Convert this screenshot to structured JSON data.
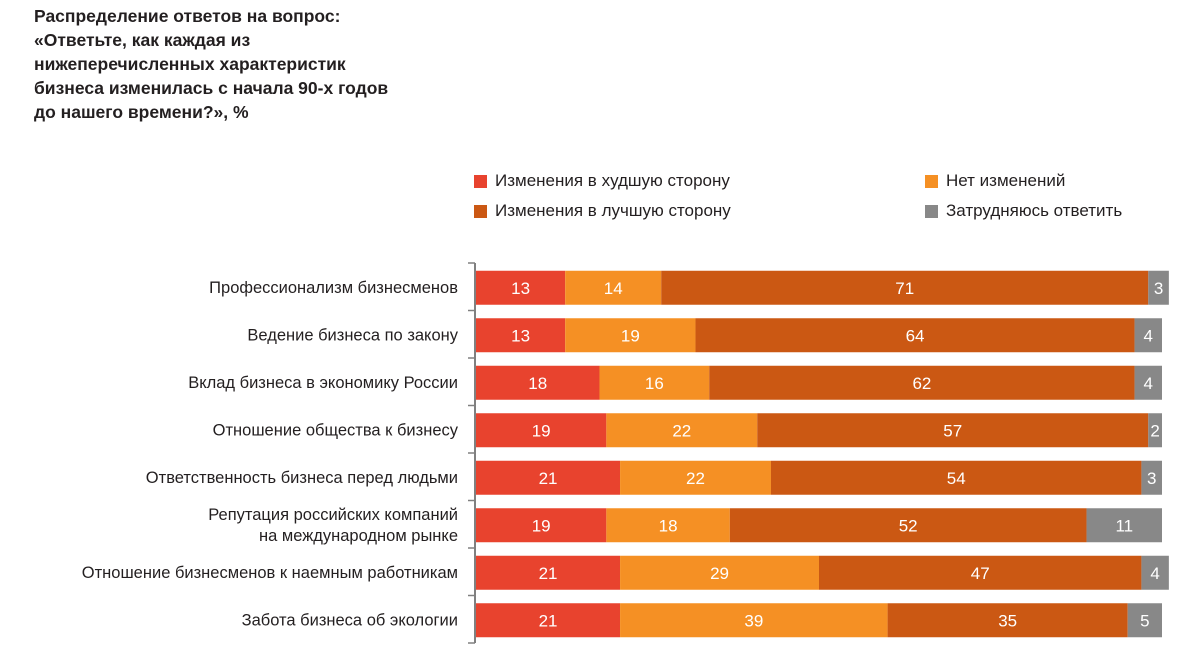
{
  "chart_data": {
    "type": "bar",
    "orientation": "horizontal",
    "stacked": true,
    "title": "Распределение ответов на вопрос:\n«Ответьте, как каждая из\nнижеперечисленных характеристик\nбизнеса изменилась с начала 90-х годов\nдо нашего времени?», %",
    "xlabel": "",
    "ylabel": "",
    "xlim": [
      0,
      100
    ],
    "grid": false,
    "legend_position": "top-right",
    "categories": [
      [
        "Профессионализм бизнесменов"
      ],
      [
        "Ведение бизнеса по закону"
      ],
      [
        "Вклад бизнеса в экономику России"
      ],
      [
        "Отношение общества к бизнесу"
      ],
      [
        "Ответственность бизнеса перед людьми"
      ],
      [
        "Репутация российских компаний",
        "на международном рынке"
      ],
      [
        "Отношение бизнесменов к наемным работникам"
      ],
      [
        "Забота бизнеса об экологии"
      ]
    ],
    "series": [
      {
        "name": "Изменения в худшую сторону",
        "color": "#E8432E",
        "values": [
          13,
          13,
          18,
          19,
          21,
          19,
          21,
          21
        ]
      },
      {
        "name": "Нет изменений",
        "color": "#F59024",
        "values": [
          14,
          19,
          16,
          22,
          22,
          18,
          29,
          39
        ]
      },
      {
        "name": "Изменения в лучшую сторону",
        "color": "#CB5813",
        "values": [
          71,
          64,
          62,
          57,
          54,
          52,
          47,
          35
        ]
      },
      {
        "name": "Затрудняюсь ответить",
        "color": "#888888",
        "values": [
          3,
          4,
          4,
          2,
          3,
          11,
          4,
          5
        ]
      }
    ],
    "legend_order": [
      0,
      1,
      2,
      3
    ]
  }
}
